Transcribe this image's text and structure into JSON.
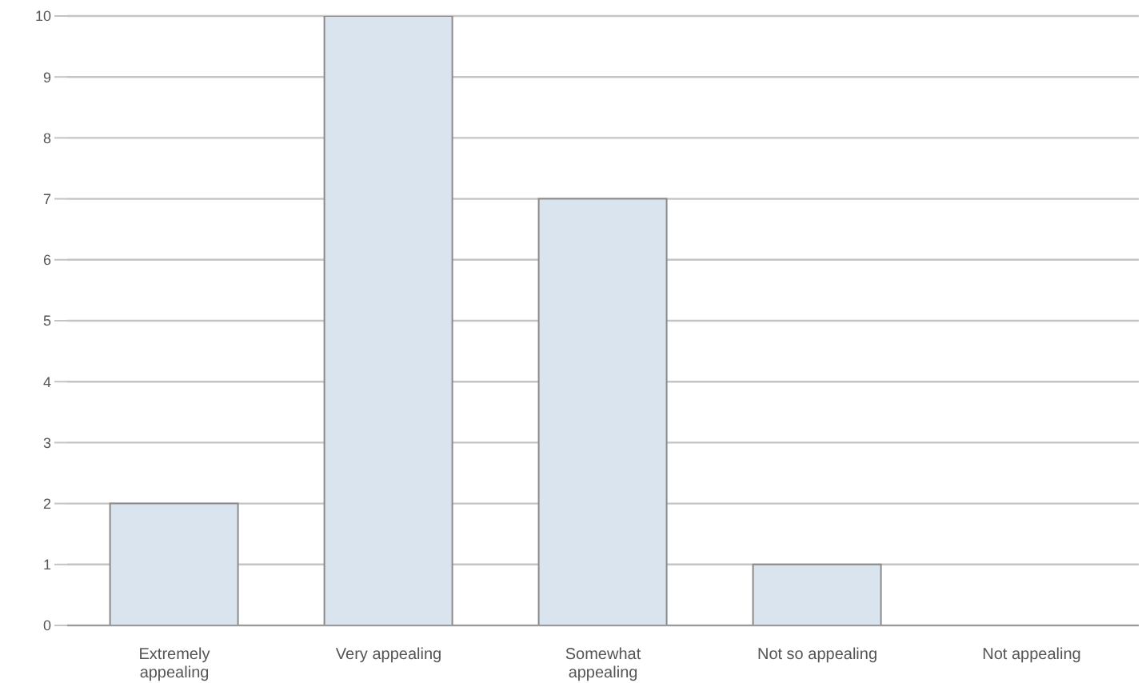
{
  "chart_data": {
    "type": "bar",
    "categories": [
      "Extremely appealing",
      "Very appealing",
      "Somewhat appealing",
      "Not so appealing",
      "Not appealing"
    ],
    "values": [
      2,
      10,
      7,
      1,
      0
    ],
    "color": "#d9e4ef",
    "ylim": [
      0,
      10
    ],
    "yticks": [
      0,
      1,
      2,
      3,
      4,
      5,
      6,
      7,
      8,
      9,
      10
    ],
    "grid": "y"
  }
}
